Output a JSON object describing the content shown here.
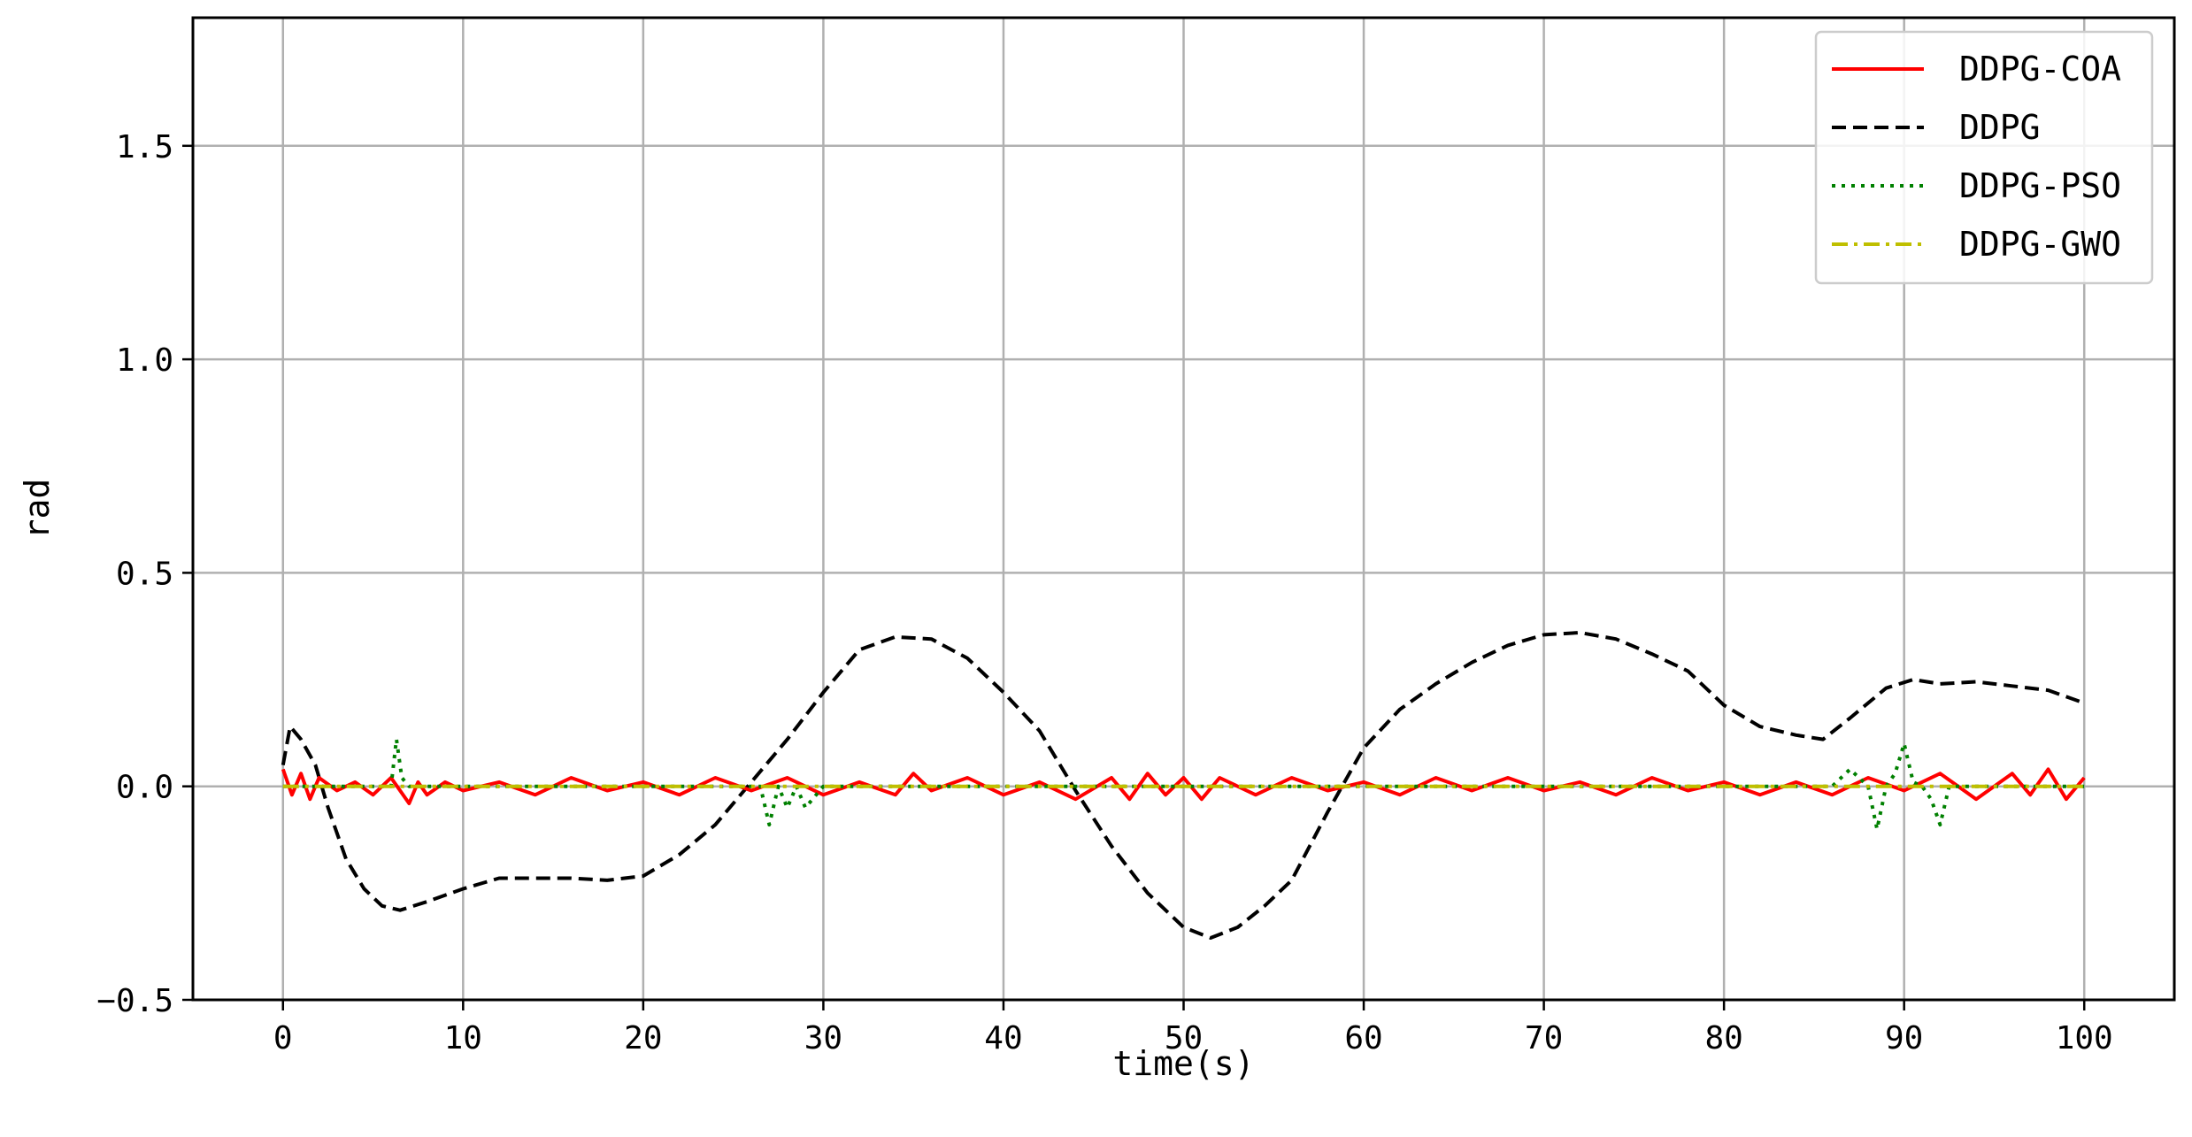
{
  "chart_data": {
    "type": "line",
    "title": "",
    "xlabel": "time(s)",
    "ylabel": "rad",
    "xlim": [
      -5,
      105
    ],
    "ylim": [
      -0.5,
      1.8
    ],
    "x_ticks": [
      0,
      10,
      20,
      30,
      40,
      50,
      60,
      70,
      80,
      90,
      100
    ],
    "x_tick_labels": [
      "0",
      "10",
      "20",
      "30",
      "40",
      "50",
      "60",
      "70",
      "80",
      "90",
      "100"
    ],
    "y_ticks": [
      -0.5,
      0.0,
      0.5,
      1.0,
      1.5
    ],
    "y_tick_labels": [
      "−0.5",
      "0.0",
      "0.5",
      "1.0",
      "1.5"
    ],
    "grid": true,
    "legend_position": "top-right",
    "series": [
      {
        "name": "DDPG-COA",
        "color": "#ff0000",
        "style": "solid",
        "x": [
          0,
          0.5,
          1,
          1.5,
          2,
          3,
          4,
          5,
          6,
          7,
          7.5,
          8,
          9,
          10,
          12,
          14,
          16,
          18,
          20,
          22,
          24,
          26,
          28,
          30,
          32,
          34,
          35,
          36,
          38,
          40,
          42,
          44,
          46,
          47,
          48,
          49,
          50,
          51,
          52,
          54,
          56,
          58,
          60,
          62,
          64,
          66,
          68,
          70,
          72,
          74,
          76,
          78,
          80,
          82,
          84,
          86,
          88,
          90,
          92,
          94,
          96,
          97,
          98,
          99,
          100
        ],
        "y": [
          0.04,
          -0.02,
          0.03,
          -0.03,
          0.02,
          -0.01,
          0.01,
          -0.02,
          0.02,
          -0.04,
          0.01,
          -0.02,
          0.01,
          -0.01,
          0.01,
          -0.02,
          0.02,
          -0.01,
          0.01,
          -0.02,
          0.02,
          -0.01,
          0.02,
          -0.02,
          0.01,
          -0.02,
          0.03,
          -0.01,
          0.02,
          -0.02,
          0.01,
          -0.03,
          0.02,
          -0.03,
          0.03,
          -0.02,
          0.02,
          -0.03,
          0.02,
          -0.02,
          0.02,
          -0.01,
          0.01,
          -0.02,
          0.02,
          -0.01,
          0.02,
          -0.01,
          0.01,
          -0.02,
          0.02,
          -0.01,
          0.01,
          -0.02,
          0.01,
          -0.02,
          0.02,
          -0.01,
          0.03,
          -0.03,
          0.03,
          -0.02,
          0.04,
          -0.03,
          0.02
        ]
      },
      {
        "name": "DDPG",
        "color": "#000000",
        "style": "dashed",
        "x": [
          0,
          0.4,
          1,
          1.8,
          2.5,
          3.5,
          4.5,
          5.5,
          6.5,
          8,
          10,
          12,
          14,
          16,
          18,
          20,
          22,
          24,
          26,
          28,
          30,
          32,
          34,
          36,
          38,
          40,
          42,
          44,
          46,
          48,
          50,
          51.5,
          53,
          54.5,
          56,
          58,
          60,
          62,
          64,
          66,
          68,
          70,
          72,
          74,
          76,
          78,
          80,
          82,
          84,
          85.5,
          87,
          89,
          90.5,
          92,
          94,
          96,
          98,
          100
        ],
        "y": [
          0.05,
          0.14,
          0.11,
          0.05,
          -0.05,
          -0.17,
          -0.24,
          -0.28,
          -0.29,
          -0.27,
          -0.24,
          -0.215,
          -0.215,
          -0.215,
          -0.22,
          -0.21,
          -0.16,
          -0.09,
          0.01,
          0.11,
          0.22,
          0.32,
          0.35,
          0.345,
          0.3,
          0.22,
          0.13,
          -0.01,
          -0.14,
          -0.25,
          -0.33,
          -0.355,
          -0.33,
          -0.28,
          -0.22,
          -0.06,
          0.09,
          0.18,
          0.24,
          0.29,
          0.33,
          0.355,
          0.36,
          0.345,
          0.31,
          0.27,
          0.19,
          0.14,
          0.12,
          0.11,
          0.16,
          0.23,
          0.25,
          0.24,
          0.245,
          0.235,
          0.225,
          0.195
        ]
      },
      {
        "name": "DDPG-PSO",
        "color": "#008000",
        "style": "dotted",
        "x": [
          0,
          3,
          6,
          6.3,
          6.6,
          7,
          10,
          20,
          26.5,
          27,
          27.5,
          28,
          28.5,
          29,
          30,
          40,
          50,
          60,
          70,
          80,
          86,
          87,
          88,
          88.5,
          89,
          89.5,
          90,
          90.5,
          91,
          91.5,
          92,
          92.5,
          95,
          100
        ],
        "y": [
          0,
          0,
          0,
          0.11,
          0.02,
          0,
          0,
          0,
          0,
          -0.09,
          0,
          -0.05,
          0,
          -0.05,
          0,
          0,
          0,
          0,
          0,
          0,
          0,
          0.04,
          0,
          -0.1,
          0,
          0.03,
          0.1,
          0.01,
          0,
          -0.03,
          -0.09,
          0,
          0,
          0
        ]
      },
      {
        "name": "DDPG-GWO",
        "color": "#bfbf00",
        "style": "dashdot",
        "x": [
          0,
          10,
          20,
          30,
          40,
          50,
          60,
          70,
          80,
          90,
          100
        ],
        "y": [
          0,
          0,
          0,
          0,
          0,
          0,
          0,
          0,
          0,
          0,
          0
        ]
      }
    ]
  }
}
